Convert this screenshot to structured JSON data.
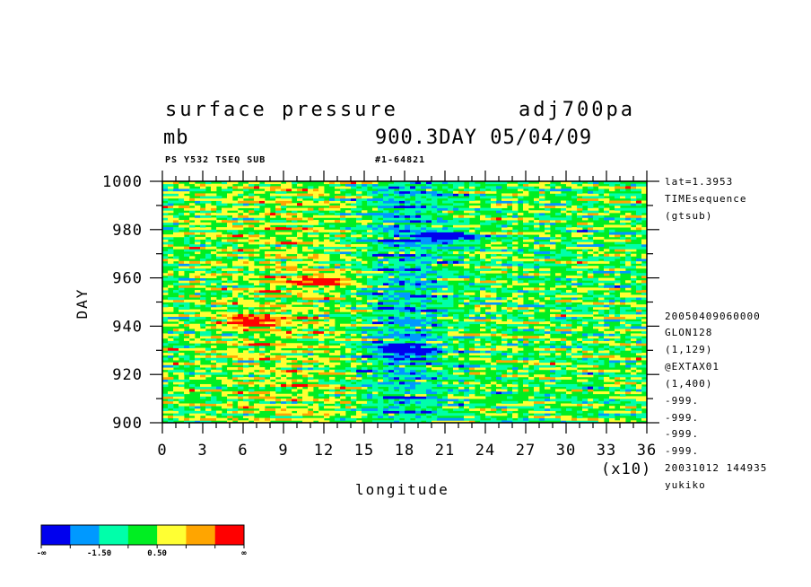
{
  "header": {
    "title": "surface pressure",
    "experiment": "adj700pa",
    "units": "mb",
    "time_label": "900.3DAY 05/04/09",
    "sub_left": "PS Y532 TSEQ SUB",
    "sub_right": "#1-64821"
  },
  "side_info": {
    "top": [
      "lat=1.3953",
      "TIMEsequence",
      "(gtsub)"
    ],
    "bottom": [
      "20050409060000",
      "GLON128",
      "(1,129)",
      "@EXTAX01",
      "(1,400)",
      "-999.",
      "-999.",
      "-999.",
      "-999.",
      "20031012 144935",
      "yukiko"
    ]
  },
  "chart_data": {
    "type": "heatmap",
    "xlabel": "longitude",
    "ylabel": "DAY",
    "x_multiplier_label": "(x10)",
    "xlim": [
      0,
      36
    ],
    "ylim": [
      900,
      1000
    ],
    "x_ticks": [
      "0",
      "3",
      "6",
      "9",
      "12",
      "15",
      "18",
      "21",
      "24",
      "27",
      "30",
      "33",
      "36"
    ],
    "y_ticks": [
      "900",
      "920",
      "940",
      "960",
      "980",
      "1000"
    ],
    "colorbar": {
      "colors": [
        "#0000ee",
        "#0099ff",
        "#00ffaa",
        "#00ee22",
        "#ffff33",
        "#ffa500",
        "#ff0000"
      ],
      "labels": [
        "-∞",
        "-1.50",
        "0.50",
        "∞"
      ]
    },
    "features": [
      {
        "x": 12,
        "y": 959,
        "color": "#ff0000",
        "desc": "high"
      },
      {
        "x": 6.5,
        "y": 942,
        "color": "#ff0000",
        "desc": "high"
      },
      {
        "x": 21,
        "y": 977,
        "color": "#0000ee",
        "desc": "low"
      },
      {
        "x": 18,
        "y": 930,
        "color": "#0000ee",
        "desc": "low"
      }
    ]
  }
}
